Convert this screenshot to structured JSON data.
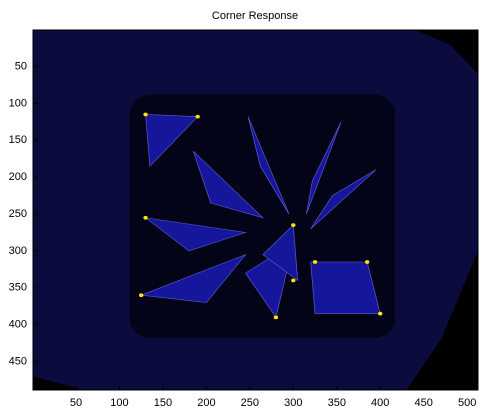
{
  "chart_data": {
    "type": "image",
    "title": "Corner Response",
    "xlim": [
      0.5,
      512.5
    ],
    "ylim": [
      0.5,
      488.5
    ],
    "y_reversed": true,
    "xticks": [
      50,
      100,
      150,
      200,
      250,
      300,
      350,
      400,
      450,
      500
    ],
    "yticks": [
      50,
      100,
      150,
      200,
      250,
      300,
      350,
      400,
      450
    ]
  }
}
